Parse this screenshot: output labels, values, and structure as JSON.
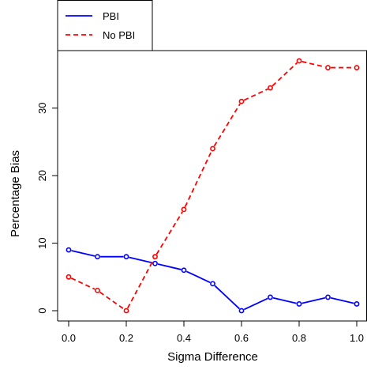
{
  "chart_data": {
    "type": "line",
    "title": "",
    "xlabel": "Sigma Difference",
    "ylabel": "Percentage Bias",
    "xlim": [
      0.0,
      1.0
    ],
    "ylim": [
      0,
      37
    ],
    "x": [
      0.0,
      0.1,
      0.2,
      0.3,
      0.4,
      0.5,
      0.6,
      0.7,
      0.8,
      0.9,
      1.0
    ],
    "x_ticks": [
      0.0,
      0.2,
      0.4,
      0.6,
      0.8,
      1.0
    ],
    "x_tick_labels": [
      "0.0",
      "0.2",
      "0.4",
      "0.6",
      "0.8",
      "1.0"
    ],
    "y_ticks": [
      0,
      10,
      20,
      30
    ],
    "y_tick_labels": [
      "0",
      "10",
      "20",
      "30"
    ],
    "grid": false,
    "legend_position": "top-left, outside plot",
    "series": [
      {
        "name": "PBI",
        "color": "#0000ff",
        "line_style": "solid",
        "marker": "open-circle",
        "values": [
          9,
          8,
          8,
          7,
          6,
          4,
          0,
          2,
          1,
          2,
          1
        ]
      },
      {
        "name": "No PBI",
        "color": "#ff0000",
        "line_style": "dashed",
        "marker": "open-circle",
        "values": [
          5,
          3,
          0,
          8,
          15,
          24,
          31,
          33,
          37,
          36,
          36
        ]
      }
    ]
  }
}
